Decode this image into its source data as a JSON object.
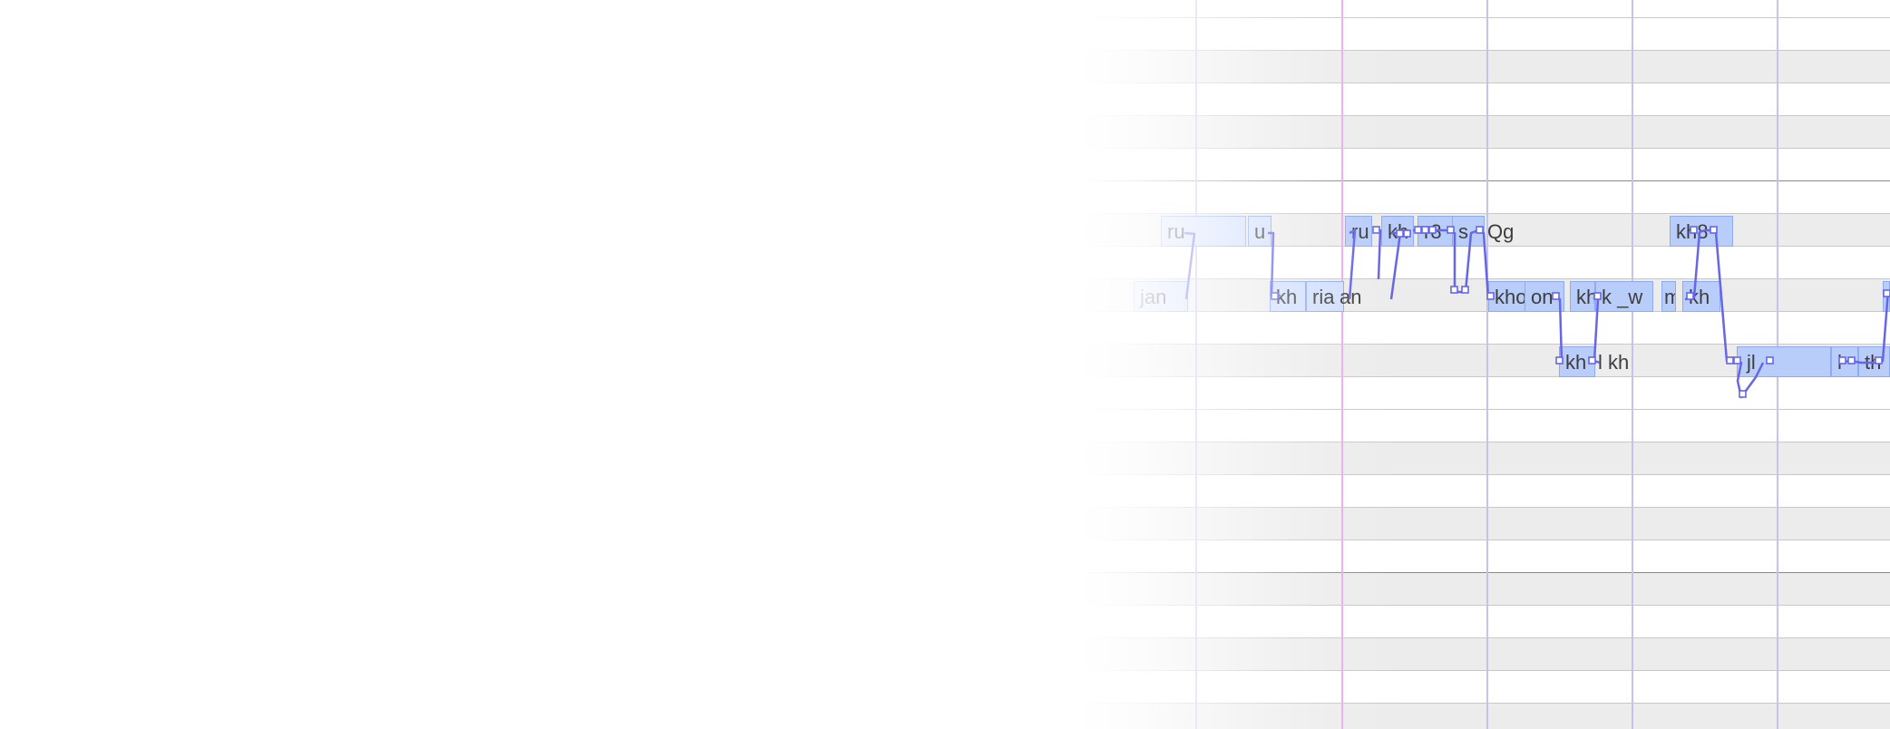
{
  "editor": {
    "notes": [
      {
        "lyric": "ru"
      },
      {
        "lyric": "u"
      },
      {
        "lyric": "jan"
      },
      {
        "lyric": "kh"
      },
      {
        "lyric": "ria"
      },
      {
        "lyric": "an"
      },
      {
        "lyric": "ru"
      },
      {
        "lyric": "kh"
      },
      {
        "lyric": "r8"
      },
      {
        "lyric": "s"
      },
      {
        "lyric": "Qg"
      },
      {
        "lyric": "kho"
      },
      {
        "lyric": "on"
      },
      {
        "lyric": "kh"
      },
      {
        "lyric": "k _w"
      },
      {
        "lyric": "m"
      },
      {
        "lyric": "kh"
      },
      {
        "lyric": "kh8"
      },
      {
        "lyric": "kh"
      },
      {
        "lyric": "l kh"
      },
      {
        "lyric": "jl"
      },
      {
        "lyric": "l"
      },
      {
        "lyric": "th"
      }
    ]
  },
  "colors": {
    "row_alt": "#ececec",
    "row_line": "#c8c8c8",
    "beat_line": "#c3c3ee",
    "playhead": "#f0a8f0",
    "note_fill": "#b9cdfb",
    "pitch_line": "#6666e6"
  }
}
